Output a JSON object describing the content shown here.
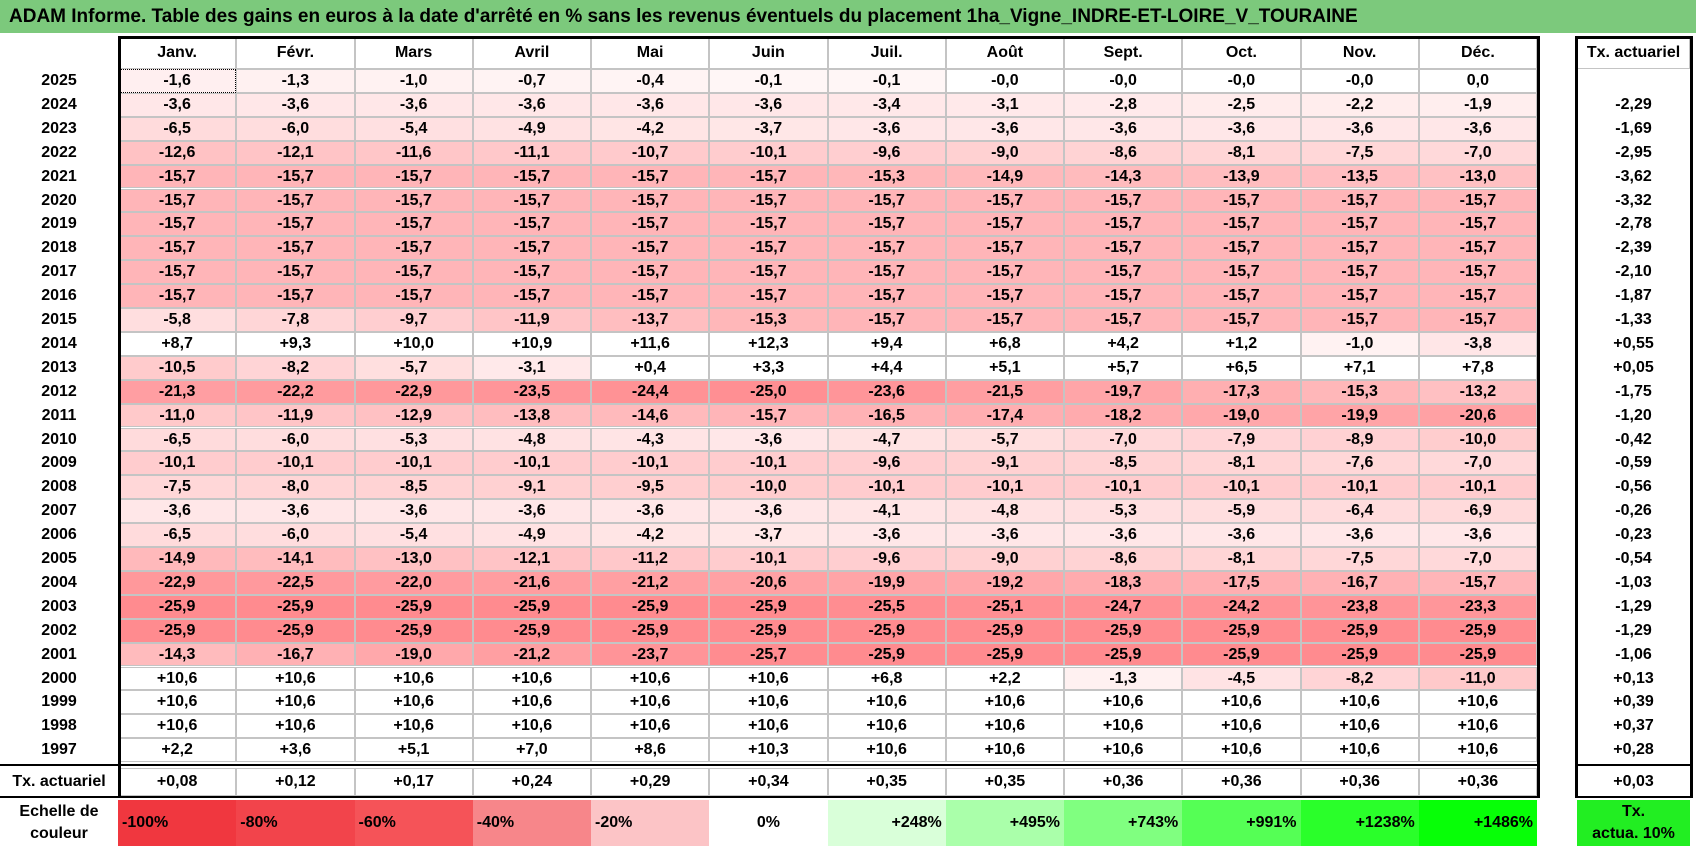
{
  "title": "ADAM Informe. Table des gains en euros à la date d'arrêté en % sans les revenus éventuels du placement 1ha_Vigne_INDRE-ET-LOIRE_V_TOURAINE",
  "months": [
    "Janv.",
    "Févr.",
    "Mars",
    "Avril",
    "Mai",
    "Juin",
    "Juil.",
    "Août",
    "Sept.",
    "Oct.",
    "Nov.",
    "Déc."
  ],
  "rate_header": "Tx. actuariel",
  "rows": [
    {
      "year": "2025",
      "values": [
        "-1,6",
        "-1,3",
        "-1,0",
        "-0,7",
        "-0,4",
        "-0,1",
        "-0,1",
        "-0,0",
        "-0,0",
        "-0,0",
        "-0,0",
        "0,0"
      ],
      "rate": ""
    },
    {
      "year": "2024",
      "values": [
        "-3,6",
        "-3,6",
        "-3,6",
        "-3,6",
        "-3,6",
        "-3,6",
        "-3,4",
        "-3,1",
        "-2,8",
        "-2,5",
        "-2,2",
        "-1,9"
      ],
      "rate": "-2,29"
    },
    {
      "year": "2023",
      "values": [
        "-6,5",
        "-6,0",
        "-5,4",
        "-4,9",
        "-4,2",
        "-3,7",
        "-3,6",
        "-3,6",
        "-3,6",
        "-3,6",
        "-3,6",
        "-3,6"
      ],
      "rate": "-1,69"
    },
    {
      "year": "2022",
      "values": [
        "-12,6",
        "-12,1",
        "-11,6",
        "-11,1",
        "-10,7",
        "-10,1",
        "-9,6",
        "-9,0",
        "-8,6",
        "-8,1",
        "-7,5",
        "-7,0"
      ],
      "rate": "-2,95"
    },
    {
      "year": "2021",
      "values": [
        "-15,7",
        "-15,7",
        "-15,7",
        "-15,7",
        "-15,7",
        "-15,7",
        "-15,3",
        "-14,9",
        "-14,3",
        "-13,9",
        "-13,5",
        "-13,0"
      ],
      "rate": "-3,62"
    },
    {
      "year": "2020",
      "values": [
        "-15,7",
        "-15,7",
        "-15,7",
        "-15,7",
        "-15,7",
        "-15,7",
        "-15,7",
        "-15,7",
        "-15,7",
        "-15,7",
        "-15,7",
        "-15,7"
      ],
      "rate": "-3,32"
    },
    {
      "year": "2019",
      "values": [
        "-15,7",
        "-15,7",
        "-15,7",
        "-15,7",
        "-15,7",
        "-15,7",
        "-15,7",
        "-15,7",
        "-15,7",
        "-15,7",
        "-15,7",
        "-15,7"
      ],
      "rate": "-2,78"
    },
    {
      "year": "2018",
      "values": [
        "-15,7",
        "-15,7",
        "-15,7",
        "-15,7",
        "-15,7",
        "-15,7",
        "-15,7",
        "-15,7",
        "-15,7",
        "-15,7",
        "-15,7",
        "-15,7"
      ],
      "rate": "-2,39"
    },
    {
      "year": "2017",
      "values": [
        "-15,7",
        "-15,7",
        "-15,7",
        "-15,7",
        "-15,7",
        "-15,7",
        "-15,7",
        "-15,7",
        "-15,7",
        "-15,7",
        "-15,7",
        "-15,7"
      ],
      "rate": "-2,10"
    },
    {
      "year": "2016",
      "values": [
        "-15,7",
        "-15,7",
        "-15,7",
        "-15,7",
        "-15,7",
        "-15,7",
        "-15,7",
        "-15,7",
        "-15,7",
        "-15,7",
        "-15,7",
        "-15,7"
      ],
      "rate": "-1,87"
    },
    {
      "year": "2015",
      "values": [
        "-5,8",
        "-7,8",
        "-9,7",
        "-11,9",
        "-13,7",
        "-15,3",
        "-15,7",
        "-15,7",
        "-15,7",
        "-15,7",
        "-15,7",
        "-15,7"
      ],
      "rate": "-1,33"
    },
    {
      "year": "2014",
      "values": [
        "+8,7",
        "+9,3",
        "+10,0",
        "+10,9",
        "+11,6",
        "+12,3",
        "+9,4",
        "+6,8",
        "+4,2",
        "+1,2",
        "-1,0",
        "-3,8"
      ],
      "rate": "+0,55"
    },
    {
      "year": "2013",
      "values": [
        "-10,5",
        "-8,2",
        "-5,7",
        "-3,1",
        "+0,4",
        "+3,3",
        "+4,4",
        "+5,1",
        "+5,7",
        "+6,5",
        "+7,1",
        "+7,8"
      ],
      "rate": "+0,05"
    },
    {
      "year": "2012",
      "values": [
        "-21,3",
        "-22,2",
        "-22,9",
        "-23,5",
        "-24,4",
        "-25,0",
        "-23,6",
        "-21,5",
        "-19,7",
        "-17,3",
        "-15,3",
        "-13,2"
      ],
      "rate": "-1,75"
    },
    {
      "year": "2011",
      "values": [
        "-11,0",
        "-11,9",
        "-12,9",
        "-13,8",
        "-14,6",
        "-15,7",
        "-16,5",
        "-17,4",
        "-18,2",
        "-19,0",
        "-19,9",
        "-20,6"
      ],
      "rate": "-1,20"
    },
    {
      "year": "2010",
      "values": [
        "-6,5",
        "-6,0",
        "-5,3",
        "-4,8",
        "-4,3",
        "-3,6",
        "-4,7",
        "-5,7",
        "-7,0",
        "-7,9",
        "-8,9",
        "-10,0"
      ],
      "rate": "-0,42"
    },
    {
      "year": "2009",
      "values": [
        "-10,1",
        "-10,1",
        "-10,1",
        "-10,1",
        "-10,1",
        "-10,1",
        "-9,6",
        "-9,1",
        "-8,5",
        "-8,1",
        "-7,6",
        "-7,0"
      ],
      "rate": "-0,59"
    },
    {
      "year": "2008",
      "values": [
        "-7,5",
        "-8,0",
        "-8,5",
        "-9,1",
        "-9,5",
        "-10,0",
        "-10,1",
        "-10,1",
        "-10,1",
        "-10,1",
        "-10,1",
        "-10,1"
      ],
      "rate": "-0,56"
    },
    {
      "year": "2007",
      "values": [
        "-3,6",
        "-3,6",
        "-3,6",
        "-3,6",
        "-3,6",
        "-3,6",
        "-4,1",
        "-4,8",
        "-5,3",
        "-5,9",
        "-6,4",
        "-6,9"
      ],
      "rate": "-0,26"
    },
    {
      "year": "2006",
      "values": [
        "-6,5",
        "-6,0",
        "-5,4",
        "-4,9",
        "-4,2",
        "-3,7",
        "-3,6",
        "-3,6",
        "-3,6",
        "-3,6",
        "-3,6",
        "-3,6"
      ],
      "rate": "-0,23"
    },
    {
      "year": "2005",
      "values": [
        "-14,9",
        "-14,1",
        "-13,0",
        "-12,1",
        "-11,2",
        "-10,1",
        "-9,6",
        "-9,0",
        "-8,6",
        "-8,1",
        "-7,5",
        "-7,0"
      ],
      "rate": "-0,54"
    },
    {
      "year": "2004",
      "values": [
        "-22,9",
        "-22,5",
        "-22,0",
        "-21,6",
        "-21,2",
        "-20,6",
        "-19,9",
        "-19,2",
        "-18,3",
        "-17,5",
        "-16,7",
        "-15,7"
      ],
      "rate": "-1,03"
    },
    {
      "year": "2003",
      "values": [
        "-25,9",
        "-25,9",
        "-25,9",
        "-25,9",
        "-25,9",
        "-25,9",
        "-25,5",
        "-25,1",
        "-24,7",
        "-24,2",
        "-23,8",
        "-23,3"
      ],
      "rate": "-1,29"
    },
    {
      "year": "2002",
      "values": [
        "-25,9",
        "-25,9",
        "-25,9",
        "-25,9",
        "-25,9",
        "-25,9",
        "-25,9",
        "-25,9",
        "-25,9",
        "-25,9",
        "-25,9",
        "-25,9"
      ],
      "rate": "-1,29"
    },
    {
      "year": "2001",
      "values": [
        "-14,3",
        "-16,7",
        "-19,0",
        "-21,2",
        "-23,7",
        "-25,7",
        "-25,9",
        "-25,9",
        "-25,9",
        "-25,9",
        "-25,9",
        "-25,9"
      ],
      "rate": "-1,06"
    },
    {
      "year": "2000",
      "values": [
        "+10,6",
        "+10,6",
        "+10,6",
        "+10,6",
        "+10,6",
        "+10,6",
        "+6,8",
        "+2,2",
        "-1,3",
        "-4,5",
        "-8,2",
        "-11,0"
      ],
      "rate": "+0,13"
    },
    {
      "year": "1999",
      "values": [
        "+10,6",
        "+10,6",
        "+10,6",
        "+10,6",
        "+10,6",
        "+10,6",
        "+10,6",
        "+10,6",
        "+10,6",
        "+10,6",
        "+10,6",
        "+10,6"
      ],
      "rate": "+0,39"
    },
    {
      "year": "1998",
      "values": [
        "+10,6",
        "+10,6",
        "+10,6",
        "+10,6",
        "+10,6",
        "+10,6",
        "+10,6",
        "+10,6",
        "+10,6",
        "+10,6",
        "+10,6",
        "+10,6"
      ],
      "rate": "+0,37"
    },
    {
      "year": "1997",
      "values": [
        "+2,2",
        "+3,6",
        "+5,1",
        "+7,0",
        "+8,6",
        "+10,3",
        "+10,6",
        "+10,6",
        "+10,6",
        "+10,6",
        "+10,6",
        "+10,6"
      ],
      "rate": "+0,28"
    }
  ],
  "footer": {
    "label": "Tx. actuariel",
    "values": [
      "+0,08",
      "+0,12",
      "+0,17",
      "+0,24",
      "+0,29",
      "+0,34",
      "+0,35",
      "+0,35",
      "+0,36",
      "+0,36",
      "+0,36",
      "+0,36"
    ],
    "total": "+0,03"
  },
  "scale": {
    "label_line1": "Echelle de",
    "label_line2": "couleur",
    "items": [
      {
        "text": "-100%",
        "color": "#f0373f"
      },
      {
        "text": "-80%",
        "color": "#f2444b"
      },
      {
        "text": "-60%",
        "color": "#f55358"
      },
      {
        "text": "-40%",
        "color": "#f7868a"
      },
      {
        "text": "-20%",
        "color": "#fcc4c6"
      },
      {
        "text": "0%",
        "color": "#ffffff"
      },
      {
        "text": "+248%",
        "color": "#d9ffd9"
      },
      {
        "text": "+495%",
        "color": "#aaffaa"
      },
      {
        "text": "+743%",
        "color": "#80ff80"
      },
      {
        "text": "+991%",
        "color": "#55ff55"
      },
      {
        "text": "+1238%",
        "color": "#2aff2a"
      },
      {
        "text": "+1486%",
        "color": "#07ff07"
      }
    ],
    "rate_line1": "Tx.",
    "rate_line2": "actua. 10%",
    "rate_color": "#22ee22"
  },
  "colors": {
    "title_bg": "#7cc97c",
    "negative_max": "#f7868a",
    "negative_min": "#fff5f5",
    "positive": "#ffffff"
  }
}
